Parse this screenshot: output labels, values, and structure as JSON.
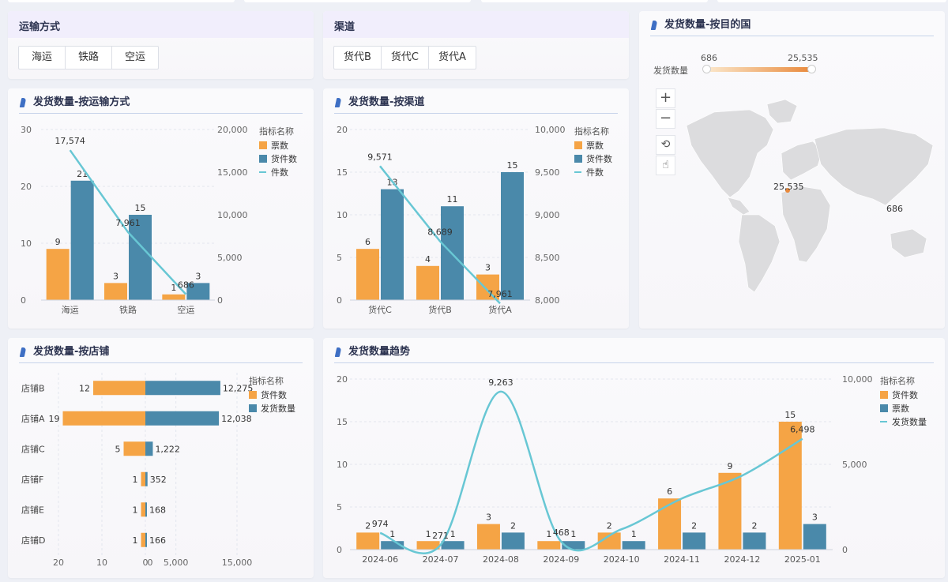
{
  "filters": {
    "transport": {
      "title": "运输方式",
      "options": [
        "海运",
        "铁路",
        "空运"
      ]
    },
    "channel": {
      "title": "渠道",
      "options": [
        "货代B",
        "货代C",
        "货代A"
      ]
    }
  },
  "map": {
    "title": "发货数量-按目的国",
    "legend_label": "发货数量",
    "min": "686",
    "max": "25,535",
    "labels": [
      "25,535",
      "686"
    ],
    "controls": [
      "+",
      "−",
      "⟲",
      "☝"
    ],
    "colors": {
      "low": "#f7d7a9",
      "high": "#e9883a"
    }
  },
  "colors": {
    "orange": "#f5a445",
    "blue": "#4a89aa",
    "line": "#68c7d4"
  },
  "chart_data": [
    {
      "id": "transport",
      "type": "bar",
      "title": "发货数量-按运输方式",
      "legend_title": "指标名称",
      "categories": [
        "海运",
        "铁路",
        "空运"
      ],
      "series": [
        {
          "name": "票数",
          "values": [
            9,
            3,
            1
          ],
          "axis": "left"
        },
        {
          "name": "货件数",
          "values": [
            21,
            15,
            3
          ],
          "axis": "left"
        },
        {
          "name": "件数",
          "values": [
            17574,
            7961,
            686
          ],
          "axis": "right",
          "kind": "line"
        }
      ],
      "y_left": {
        "min": 0,
        "max": 30,
        "ticks": [
          "30",
          "20",
          "10",
          "0"
        ]
      },
      "y_right": {
        "min": 0,
        "max": 20000,
        "ticks": [
          "20,000",
          "15,000",
          "10,000",
          "5,000",
          "0"
        ]
      },
      "labels": {
        "bars": [
          [
            "9",
            "3",
            "1"
          ],
          [
            "21",
            "15",
            "3"
          ]
        ],
        "line": [
          "17,574",
          "7,961",
          "686"
        ]
      }
    },
    {
      "id": "channel",
      "type": "bar",
      "title": "发货数量-按渠道",
      "legend_title": "指标名称",
      "categories": [
        "货代C",
        "货代B",
        "货代A"
      ],
      "series": [
        {
          "name": "票数",
          "values": [
            6,
            4,
            3
          ],
          "axis": "left"
        },
        {
          "name": "货件数",
          "values": [
            13,
            11,
            15
          ],
          "axis": "left"
        },
        {
          "name": "件数",
          "values": [
            9571,
            8689,
            7961
          ],
          "axis": "right",
          "kind": "line"
        }
      ],
      "y_left": {
        "min": 0,
        "max": 20,
        "ticks": [
          "20",
          "15",
          "10",
          "5",
          "0"
        ]
      },
      "y_right": {
        "min": 8000,
        "max": 10000,
        "ticks": [
          "10,000",
          "9,500",
          "9,000",
          "8,500",
          "8,000"
        ]
      },
      "labels": {
        "bars": [
          [
            "6",
            "4",
            "3"
          ],
          [
            "13",
            "11",
            "15"
          ]
        ],
        "line": [
          "9,571",
          "8,689",
          "7,961"
        ]
      }
    },
    {
      "id": "store",
      "type": "bar",
      "orientation": "horizontal",
      "title": "发货数量-按店铺",
      "legend_title": "指标名称",
      "categories": [
        "店铺B",
        "店铺A",
        "店铺C",
        "店铺F",
        "店铺E",
        "店铺D"
      ],
      "series": [
        {
          "name": "货件数",
          "values": [
            12,
            19,
            5,
            1,
            1,
            1
          ],
          "axis": "left"
        },
        {
          "name": "发货数量",
          "values": [
            12275,
            12038,
            1222,
            352,
            168,
            166
          ],
          "axis": "right"
        }
      ],
      "x_left": {
        "min": 0,
        "max": 20,
        "ticks": [
          "20",
          "10",
          "0"
        ]
      },
      "x_right": {
        "min": 0,
        "max": 15000,
        "ticks": [
          "0",
          "5,000",
          "15,000"
        ]
      },
      "labels": {
        "left": [
          "12",
          "19",
          "5",
          "1",
          "1",
          "1"
        ],
        "right": [
          "12,275",
          "12,038",
          "1,222",
          "352",
          "168",
          "166"
        ]
      }
    },
    {
      "id": "trend",
      "type": "bar",
      "title": "发货数量趋势",
      "legend_title": "指标名称",
      "categories": [
        "2024-06",
        "2024-07",
        "2024-08",
        "2024-09",
        "2024-10",
        "2024-11",
        "2024-12",
        "2025-01"
      ],
      "series": [
        {
          "name": "货件数",
          "values": [
            2,
            1,
            3,
            1,
            2,
            6,
            9,
            15
          ],
          "axis": "left"
        },
        {
          "name": "票数",
          "values": [
            1,
            1,
            2,
            1,
            1,
            2,
            2,
            3
          ],
          "axis": "left"
        },
        {
          "name": "发货数量",
          "values": [
            974,
            271,
            9263,
            468,
            1193,
            2999,
            4341,
            6498
          ],
          "axis": "right",
          "kind": "line"
        }
      ],
      "y_left": {
        "min": 0,
        "max": 20,
        "ticks": [
          "20",
          "15",
          "10",
          "5",
          "0"
        ]
      },
      "y_right": {
        "min": 0,
        "max": 10000,
        "ticks": [
          "10,000",
          "5,000",
          "0"
        ]
      },
      "labels": {
        "bars": [
          [
            "2",
            "1",
            "3",
            "1",
            "2",
            "6",
            "9",
            "15"
          ],
          [
            "1",
            "1",
            "2",
            "1",
            "1",
            "2",
            "2",
            "3"
          ]
        ],
        "line": [
          "974",
          "271",
          "9,263",
          "468",
          "",
          "",
          "",
          "6,498"
        ]
      }
    }
  ]
}
